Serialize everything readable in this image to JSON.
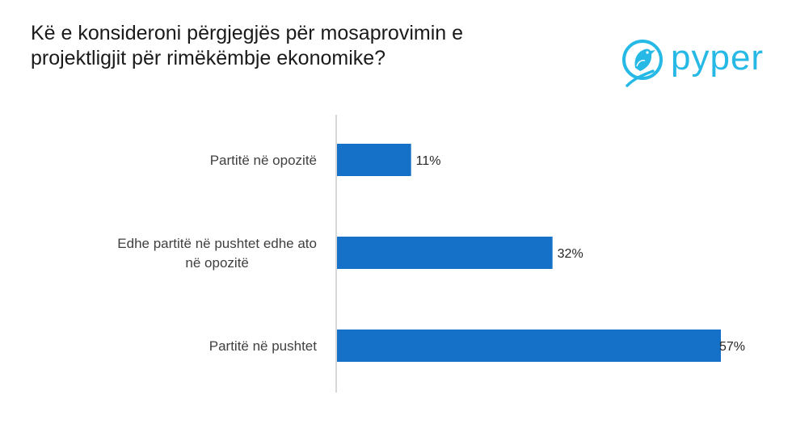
{
  "page": {
    "title_lines": [
      "Kë e konsideroni përgjegjës për mosaprovimin e",
      "projektligjit për rimëkëmbje ekonomike?"
    ]
  },
  "logo": {
    "text": "pyper",
    "color": "#27b9e6",
    "icon": "bird-logo-icon"
  },
  "chart_data": {
    "type": "bar",
    "orientation": "horizontal",
    "title": "Kë e konsideroni përgjegjës për mosaprovimin e projektligjit për rimëkëmbje ekonomike?",
    "categories": [
      [
        "Partitë në opozitë"
      ],
      [
        "Edhe partitë në pushtet edhe ato",
        "në opozitë"
      ],
      [
        "Partitë në pushtet"
      ]
    ],
    "values": [
      11,
      32,
      57
    ],
    "value_labels": [
      "11%",
      "32%",
      "57%"
    ],
    "xlim": [
      0,
      57
    ],
    "bar_color": "#1570c8",
    "axis_color": "#bfbfbf",
    "grid": false,
    "xlabel": "",
    "ylabel": ""
  }
}
